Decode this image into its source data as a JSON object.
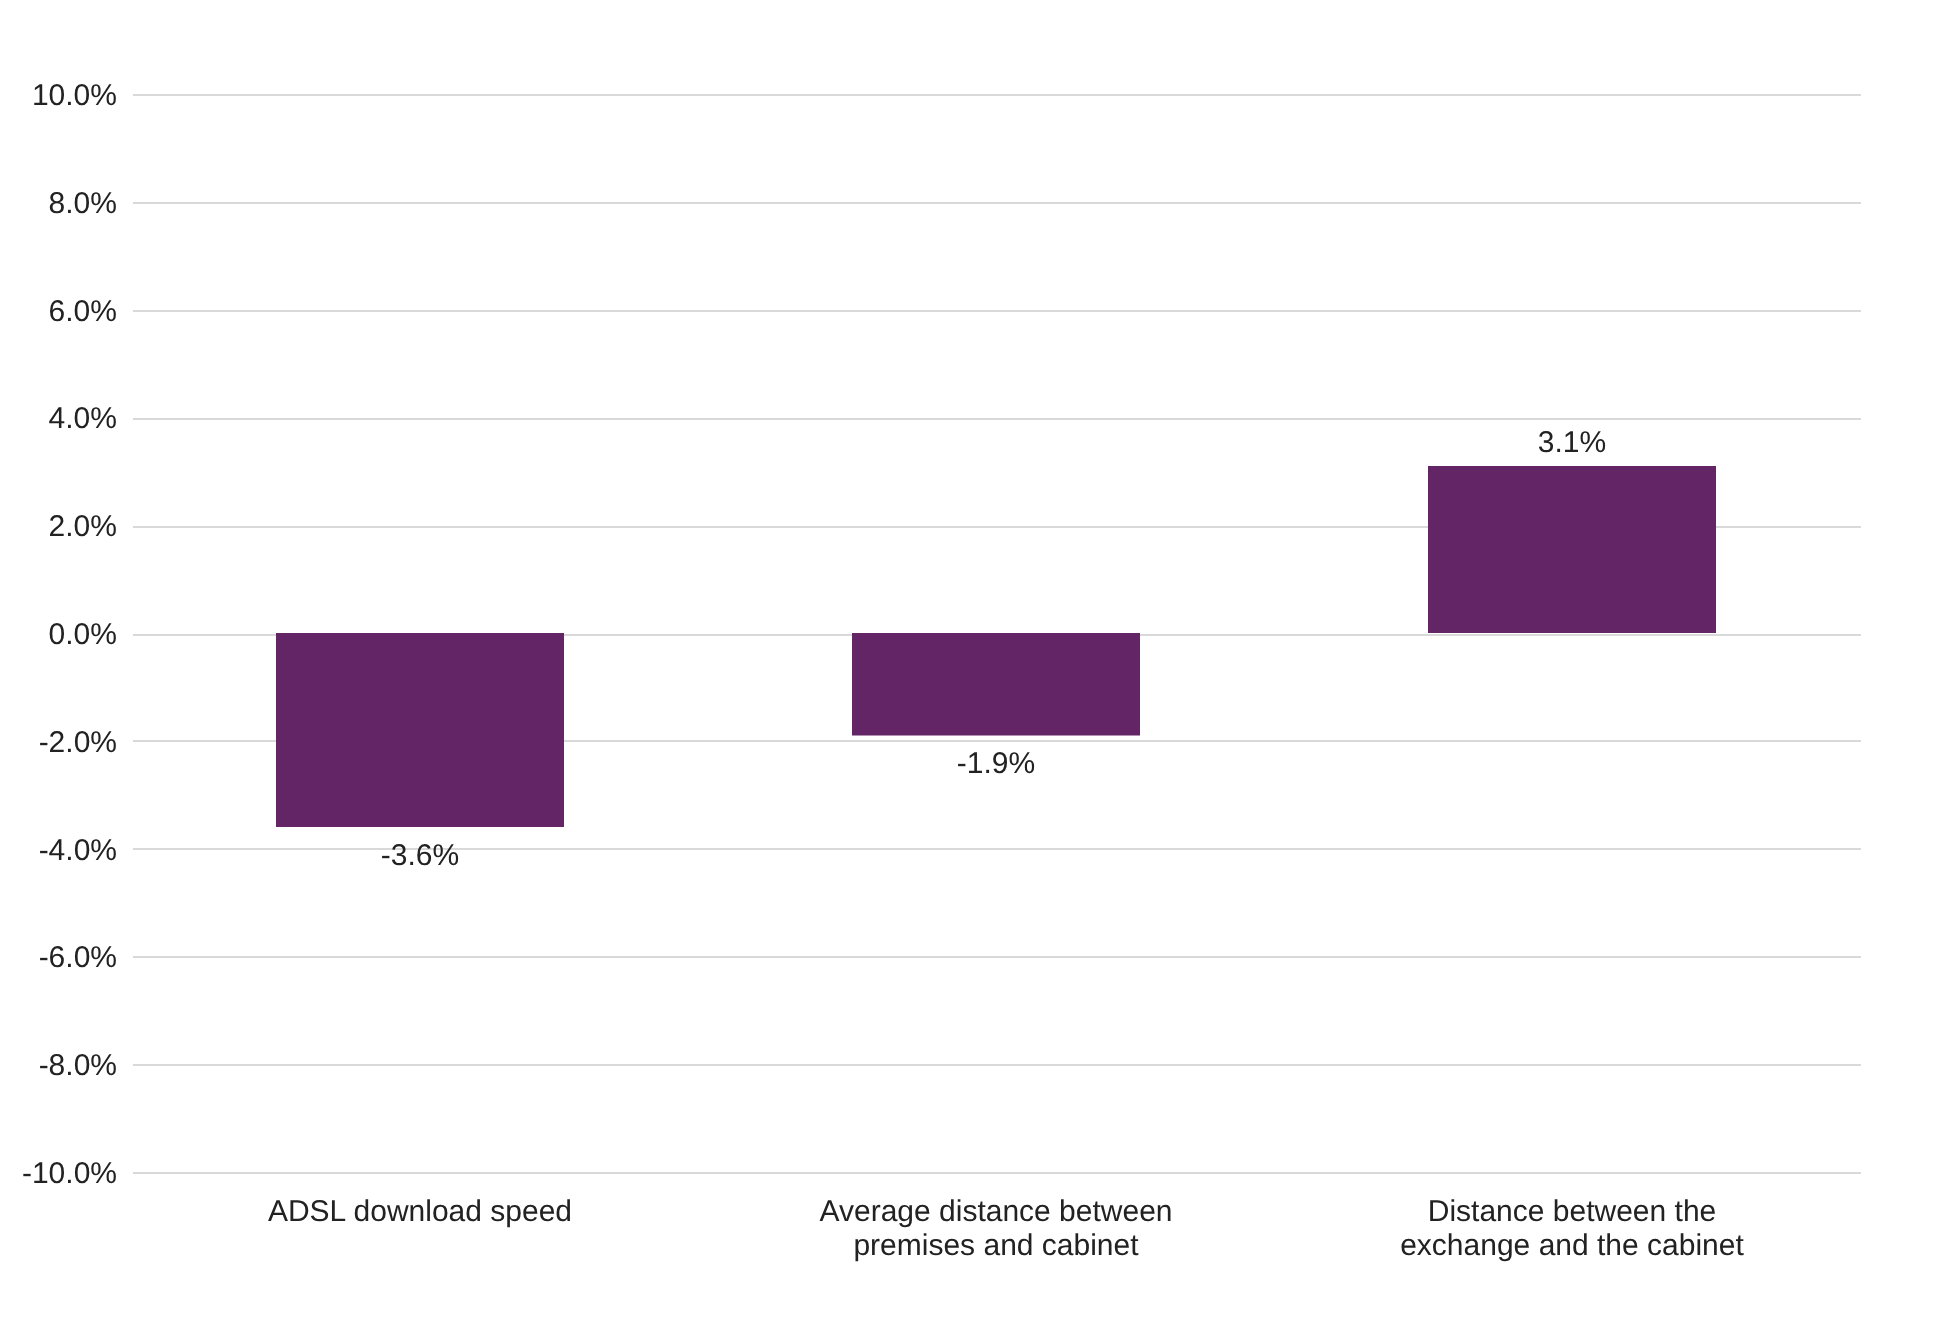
{
  "chart_data": {
    "type": "bar",
    "categories": [
      "ADSL download speed",
      "Average distance between premises and cabinet",
      "Distance between the exchange and the cabinet"
    ],
    "values": [
      -3.6,
      -1.9,
      3.1
    ],
    "value_labels": [
      "-3.6%",
      "-1.9%",
      "3.1%"
    ],
    "color": "#642566",
    "ylim": [
      -10,
      10
    ],
    "yticks": [
      {
        "value": -10,
        "label": "-10.0%"
      },
      {
        "value": -8,
        "label": "-8.0%"
      },
      {
        "value": -6,
        "label": "-6.0%"
      },
      {
        "value": -4,
        "label": "-4.0%"
      },
      {
        "value": -2,
        "label": "-2.0%"
      },
      {
        "value": 0,
        "label": "0.0%"
      },
      {
        "value": 2,
        "label": "2.0%"
      },
      {
        "value": 4,
        "label": "4.0%"
      },
      {
        "value": 6,
        "label": "6.0%"
      },
      {
        "value": 8,
        "label": "8.0%"
      },
      {
        "value": 10,
        "label": "10.0%"
      }
    ],
    "grid": "y"
  }
}
